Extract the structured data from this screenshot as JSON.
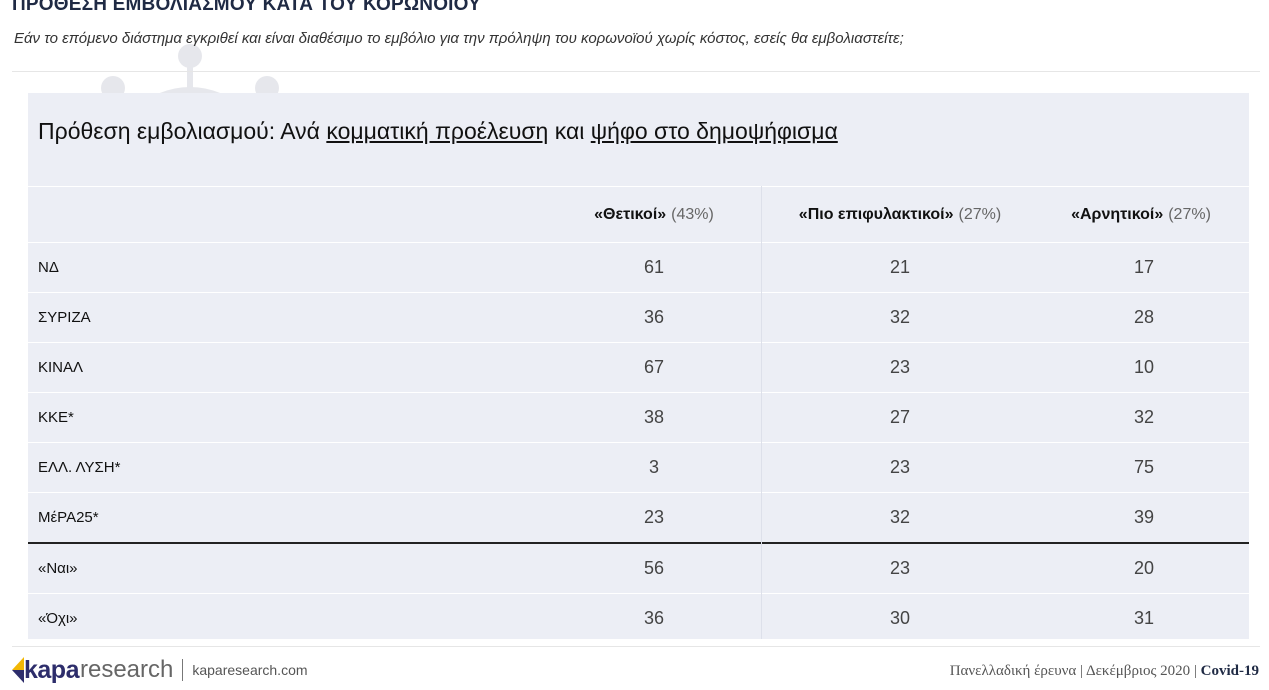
{
  "header": {
    "title": "ΠΡΟΘΕΣΗ ΕΜΒΟΛΙΑΣΜΟΥ ΚΑΤΑ ΤΟΥ ΚΟΡΩΝΟΙΟΥ",
    "subtitle": "Εάν το επόμενο διάστημα εγκριθεί και είναι διαθέσιμο το εμβόλιο για την πρόληψη του κορωνοϊού χωρίς κόστος, εσείς θα εμβολιαστείτε;"
  },
  "panel": {
    "title_prefix": "Πρόθεση εμβολιασμού: Ανά ",
    "title_u1": "κομματική προέλευση",
    "title_mid": " και ",
    "title_u2": "ψήφο στο δημοψήφισμα"
  },
  "table": {
    "headers": [
      {
        "label": "«Θετικοί»",
        "pct": "(43%)"
      },
      {
        "label": "«Πιο επιφυλακτικοί»",
        "pct": "(27%)"
      },
      {
        "label": "«Αρνητικοί»",
        "pct": "(27%)"
      }
    ],
    "rows": [
      {
        "name": "ΝΔ",
        "values": [
          "61",
          "21",
          "17"
        ]
      },
      {
        "name": "ΣΥΡΙΖΑ",
        "values": [
          "36",
          "32",
          "28"
        ]
      },
      {
        "name": "ΚΙΝΑΛ",
        "values": [
          "67",
          "23",
          "10"
        ]
      },
      {
        "name": "ΚΚΕ*",
        "values": [
          "38",
          "27",
          "32"
        ]
      },
      {
        "name": "ΕΛΛ. ΛΥΣΗ*",
        "values": [
          "3",
          "23",
          "75"
        ]
      },
      {
        "name": "ΜέΡΑ25*",
        "values": [
          "23",
          "32",
          "39"
        ]
      },
      {
        "name": "«Ναι»",
        "values": [
          "56",
          "23",
          "20"
        ]
      },
      {
        "name": "«Όχι»",
        "values": [
          "36",
          "30",
          "31"
        ]
      }
    ]
  },
  "footer": {
    "logo_bold": "kapa",
    "logo_light": "research",
    "url": "kaparesearch.com",
    "survey": "Πανελλαδική έρευνα | Δεκέμβριος 2020 | ",
    "topic": "Covid-19"
  },
  "colors": {
    "panel_bg": "#eceef5",
    "brand_navy": "#2d2d6b",
    "brand_yellow": "#f2b705"
  },
  "icons": [
    "coronavirus-watermark-icon",
    "kapa-logo-icon"
  ]
}
